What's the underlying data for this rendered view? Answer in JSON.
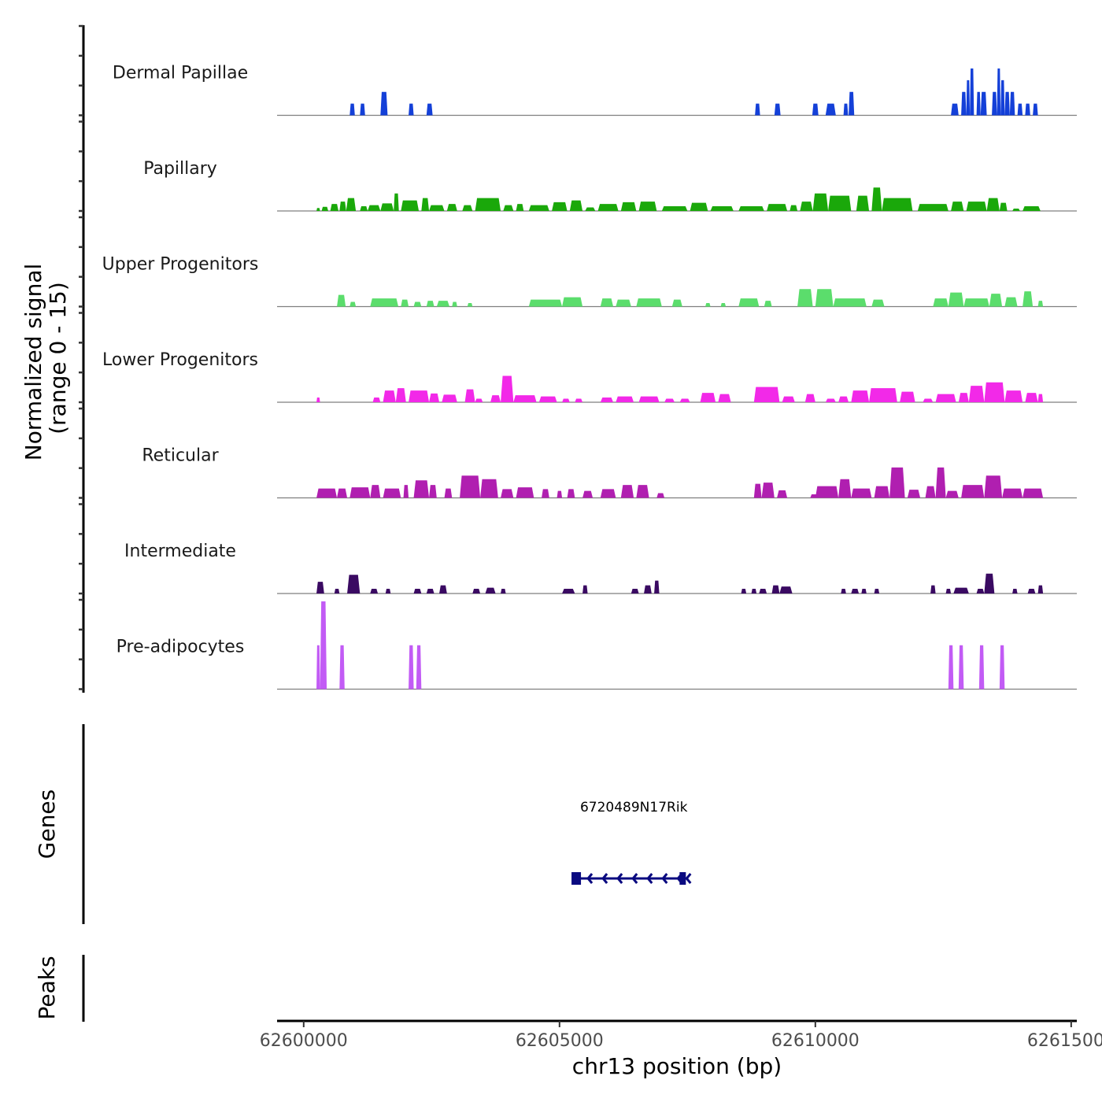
{
  "chart_data": {
    "type": "area",
    "title": "",
    "ylabel": "Normalized signal\n(range 0 - 15)",
    "ylabel_lines": [
      "Normalized signal",
      "(range 0 - 15)"
    ],
    "xlabel": "chr13 position (bp)",
    "chromosome": "chr13",
    "xlim": [
      62599480,
      62615110
    ],
    "ylim": [
      0,
      15
    ],
    "x_ticks": [
      62600000,
      62605000,
      62610000,
      62615000
    ],
    "x_tick_labels": [
      "62600000",
      "62605000",
      "62610000",
      "62615000"
    ],
    "grid": false,
    "legend": "none",
    "series": [
      {
        "name": "Dermal Papillae",
        "color": "#1440d8",
        "segments": [
          [
            62600900,
            62601000,
            2
          ],
          [
            62601100,
            62601200,
            2
          ],
          [
            62601500,
            62601640,
            4
          ],
          [
            62602050,
            62602150,
            2
          ],
          [
            62602400,
            62602520,
            2
          ],
          [
            62608820,
            62608920,
            2
          ],
          [
            62609200,
            62609320,
            2
          ],
          [
            62609940,
            62610060,
            2
          ],
          [
            62610200,
            62610400,
            2
          ],
          [
            62610550,
            62610640,
            2
          ],
          [
            62610650,
            62610760,
            4
          ],
          [
            62612650,
            62612800,
            2
          ],
          [
            62612850,
            62612950,
            4
          ],
          [
            62612950,
            62613020,
            6
          ],
          [
            62613020,
            62613100,
            8
          ],
          [
            62613150,
            62613230,
            4
          ],
          [
            62613230,
            62613350,
            4
          ],
          [
            62613450,
            62613550,
            4
          ],
          [
            62613550,
            62613620,
            8
          ],
          [
            62613620,
            62613700,
            6
          ],
          [
            62613700,
            62613800,
            4
          ],
          [
            62613800,
            62613900,
            4
          ],
          [
            62613950,
            62614050,
            2
          ],
          [
            62614100,
            62614200,
            2
          ],
          [
            62614250,
            62614350,
            2
          ]
        ]
      },
      {
        "name": "Papillary",
        "color": "#1aa80a",
        "segments": [
          [
            62600250,
            62600320,
            0.5
          ],
          [
            62600350,
            62600480,
            0.7
          ],
          [
            62600520,
            62600680,
            1.2
          ],
          [
            62600700,
            62600830,
            1.6
          ],
          [
            62600830,
            62601020,
            2.2
          ],
          [
            62601100,
            62601250,
            0.8
          ],
          [
            62601250,
            62601500,
            1
          ],
          [
            62601500,
            62601760,
            1.3
          ],
          [
            62601760,
            62601860,
            3.0
          ],
          [
            62601900,
            62602250,
            1.8
          ],
          [
            62602300,
            62602450,
            2.2
          ],
          [
            62602450,
            62602750,
            1
          ],
          [
            62602800,
            62603000,
            1.2
          ],
          [
            62603100,
            62603300,
            1
          ],
          [
            62603350,
            62603850,
            2.2
          ],
          [
            62603900,
            62604100,
            1
          ],
          [
            62604150,
            62604300,
            1.2
          ],
          [
            62604400,
            62604800,
            1
          ],
          [
            62604850,
            62605150,
            1.5
          ],
          [
            62605200,
            62605450,
            1.8
          ],
          [
            62605500,
            62605700,
            0.6
          ],
          [
            62605750,
            62606150,
            1.2
          ],
          [
            62606200,
            62606500,
            1.5
          ],
          [
            62606550,
            62606900,
            1.6
          ],
          [
            62607000,
            62607500,
            0.8
          ],
          [
            62607550,
            62607900,
            1.4
          ],
          [
            62607950,
            62608400,
            0.8
          ],
          [
            62608500,
            62609000,
            0.8
          ],
          [
            62609050,
            62609450,
            1.2
          ],
          [
            62609500,
            62609650,
            1
          ],
          [
            62609700,
            62609950,
            1.6
          ],
          [
            62609950,
            62610250,
            3.0
          ],
          [
            62610250,
            62610700,
            2.6
          ],
          [
            62610800,
            62611050,
            2.6
          ],
          [
            62611100,
            62611300,
            4.0
          ],
          [
            62611300,
            62611900,
            2.2
          ],
          [
            62612000,
            62612600,
            1.2
          ],
          [
            62612650,
            62612900,
            1.6
          ],
          [
            62612950,
            62613350,
            1.6
          ],
          [
            62613350,
            62613600,
            2.2
          ],
          [
            62613600,
            62613750,
            1.4
          ],
          [
            62613850,
            62614000,
            0.4
          ],
          [
            62614050,
            62614400,
            0.8
          ]
        ]
      },
      {
        "name": "Upper Progenitors",
        "color": "#5bdd6c",
        "segments": [
          [
            62600650,
            62600820,
            2.0
          ],
          [
            62600900,
            62601020,
            0.8
          ],
          [
            62601300,
            62601850,
            1.4
          ],
          [
            62601900,
            62602050,
            1.2
          ],
          [
            62602150,
            62602300,
            0.8
          ],
          [
            62602400,
            62602550,
            1
          ],
          [
            62602600,
            62602850,
            1
          ],
          [
            62602900,
            62603000,
            0.8
          ],
          [
            62603200,
            62603300,
            0.6
          ],
          [
            62604400,
            62605050,
            1.2
          ],
          [
            62605050,
            62605450,
            1.6
          ],
          [
            62605800,
            62606050,
            1.4
          ],
          [
            62606100,
            62606400,
            1.2
          ],
          [
            62606500,
            62607000,
            1.4
          ],
          [
            62607200,
            62607400,
            1.2
          ],
          [
            62607850,
            62607950,
            0.6
          ],
          [
            62608150,
            62608250,
            0.6
          ],
          [
            62608500,
            62608900,
            1.4
          ],
          [
            62609000,
            62609150,
            1
          ],
          [
            62609650,
            62609950,
            3.0
          ],
          [
            62610000,
            62610350,
            3.0
          ],
          [
            62610350,
            62611000,
            1.4
          ],
          [
            62611100,
            62611350,
            1.2
          ],
          [
            62612300,
            62612600,
            1.4
          ],
          [
            62612600,
            62612900,
            2.4
          ],
          [
            62612900,
            62613400,
            1.4
          ],
          [
            62613400,
            62613650,
            2.2
          ],
          [
            62613700,
            62613950,
            1.6
          ],
          [
            62614050,
            62614250,
            2.6
          ],
          [
            62614350,
            62614450,
            1
          ]
        ]
      },
      {
        "name": "Lower Progenitors",
        "color": "#f229e8",
        "segments": [
          [
            62600250,
            62600320,
            0.8
          ],
          [
            62601350,
            62601500,
            0.8
          ],
          [
            62601550,
            62601800,
            2.0
          ],
          [
            62601800,
            62602000,
            2.4
          ],
          [
            62602050,
            62602450,
            2.0
          ],
          [
            62602450,
            62602650,
            1.5
          ],
          [
            62602700,
            62603000,
            1.3
          ],
          [
            62603150,
            62603350,
            2.2
          ],
          [
            62603350,
            62603500,
            0.6
          ],
          [
            62603650,
            62603850,
            1.2
          ],
          [
            62603850,
            62604100,
            4.5
          ],
          [
            62604100,
            62604550,
            1.2
          ],
          [
            62604600,
            62604950,
            1.0
          ],
          [
            62605050,
            62605200,
            0.6
          ],
          [
            62605300,
            62605450,
            0.6
          ],
          [
            62605800,
            62606050,
            0.8
          ],
          [
            62606100,
            62606450,
            1.0
          ],
          [
            62606550,
            62606950,
            1.0
          ],
          [
            62607050,
            62607250,
            0.6
          ],
          [
            62607350,
            62607550,
            0.6
          ],
          [
            62607750,
            62608050,
            1.6
          ],
          [
            62608100,
            62608350,
            1.4
          ],
          [
            62608800,
            62609300,
            2.6
          ],
          [
            62609350,
            62609600,
            1.0
          ],
          [
            62609800,
            62610000,
            1.4
          ],
          [
            62610200,
            62610400,
            0.6
          ],
          [
            62610450,
            62610650,
            1.0
          ],
          [
            62610700,
            62611050,
            2.0
          ],
          [
            62611050,
            62611600,
            2.4
          ],
          [
            62611650,
            62611950,
            1.8
          ],
          [
            62612100,
            62612300,
            0.6
          ],
          [
            62612350,
            62612750,
            1.4
          ],
          [
            62612800,
            62613000,
            1.6
          ],
          [
            62613000,
            62613300,
            2.8
          ],
          [
            62613300,
            62613700,
            3.4
          ],
          [
            62613700,
            62614050,
            2.0
          ],
          [
            62614100,
            62614350,
            1.6
          ],
          [
            62614350,
            62614450,
            1.4
          ]
        ]
      },
      {
        "name": "Reticular",
        "color": "#b01fb0",
        "segments": [
          [
            62600250,
            62600650,
            1.6
          ],
          [
            62600650,
            62600850,
            1.6
          ],
          [
            62600900,
            62601300,
            1.8
          ],
          [
            62601300,
            62601500,
            2.2
          ],
          [
            62601550,
            62601900,
            1.6
          ],
          [
            62601950,
            62602050,
            2.2
          ],
          [
            62602150,
            62602450,
            3.0
          ],
          [
            62602450,
            62602600,
            2.2
          ],
          [
            62602750,
            62602900,
            1.6
          ],
          [
            62603050,
            62603450,
            3.8
          ],
          [
            62603450,
            62603800,
            3.2
          ],
          [
            62603850,
            62604100,
            1.5
          ],
          [
            62604150,
            62604500,
            1.8
          ],
          [
            62604650,
            62604800,
            1.5
          ],
          [
            62604950,
            62605050,
            1.2
          ],
          [
            62605150,
            62605300,
            1.5
          ],
          [
            62605450,
            62605650,
            1.2
          ],
          [
            62605800,
            62606100,
            1.5
          ],
          [
            62606200,
            62606450,
            2.2
          ],
          [
            62606500,
            62606750,
            2.2
          ],
          [
            62606900,
            62607050,
            0.8
          ],
          [
            62608800,
            62608950,
            2.4
          ],
          [
            62608950,
            62609200,
            2.6
          ],
          [
            62609250,
            62609450,
            1.3
          ],
          [
            62609900,
            62610050,
            0.6
          ],
          [
            62610000,
            62610450,
            2.0
          ],
          [
            62610450,
            62610700,
            3.2
          ],
          [
            62610700,
            62611100,
            1.6
          ],
          [
            62611150,
            62611450,
            2.0
          ],
          [
            62611450,
            62611750,
            5.2
          ],
          [
            62611800,
            62612050,
            1.4
          ],
          [
            62612150,
            62612350,
            2.0
          ],
          [
            62612350,
            62612550,
            5.2
          ],
          [
            62612550,
            62612800,
            1.2
          ],
          [
            62612850,
            62613300,
            2.2
          ],
          [
            62613300,
            62613650,
            3.8
          ],
          [
            62613650,
            62614050,
            1.6
          ],
          [
            62614050,
            62614450,
            1.6
          ]
        ]
      },
      {
        "name": "Intermediate",
        "color": "#3a0a62",
        "segments": [
          [
            62600250,
            62600400,
            2.0
          ],
          [
            62600600,
            62600700,
            0.8
          ],
          [
            62600850,
            62601100,
            3.2
          ],
          [
            62601300,
            62601450,
            0.8
          ],
          [
            62601600,
            62601700,
            0.8
          ],
          [
            62602150,
            62602300,
            0.8
          ],
          [
            62602400,
            62602550,
            0.8
          ],
          [
            62602650,
            62602800,
            1.4
          ],
          [
            62603300,
            62603450,
            0.8
          ],
          [
            62603550,
            62603750,
            1.0
          ],
          [
            62603850,
            62603950,
            0.8
          ],
          [
            62605050,
            62605300,
            0.8
          ],
          [
            62605450,
            62605550,
            1.4
          ],
          [
            62606400,
            62606550,
            0.8
          ],
          [
            62606650,
            62606800,
            1.4
          ],
          [
            62606850,
            62606950,
            2.2
          ],
          [
            62608550,
            62608650,
            0.8
          ],
          [
            62608750,
            62608850,
            0.8
          ],
          [
            62608900,
            62609050,
            0.8
          ],
          [
            62609150,
            62609300,
            1.4
          ],
          [
            62609300,
            62609550,
            1.2
          ],
          [
            62610500,
            62610600,
            0.8
          ],
          [
            62610700,
            62610850,
            0.8
          ],
          [
            62610900,
            62611000,
            0.8
          ],
          [
            62611150,
            62611250,
            0.8
          ],
          [
            62612250,
            62612350,
            1.4
          ],
          [
            62612550,
            62612650,
            0.8
          ],
          [
            62612700,
            62613000,
            1.0
          ],
          [
            62613150,
            62613300,
            0.8
          ],
          [
            62613300,
            62613500,
            3.4
          ],
          [
            62613850,
            62613950,
            0.8
          ],
          [
            62614150,
            62614300,
            0.8
          ],
          [
            62614350,
            62614450,
            1.4
          ]
        ]
      },
      {
        "name": "Pre-adipocytes",
        "color": "#c25bf5",
        "segments": [
          [
            62600250,
            62600320,
            7.5
          ],
          [
            62600320,
            62600450,
            15
          ],
          [
            62600700,
            62600800,
            7.5
          ],
          [
            62602050,
            62602150,
            7.5
          ],
          [
            62602200,
            62602300,
            7.5
          ],
          [
            62612600,
            62612700,
            7.5
          ],
          [
            62612800,
            62612900,
            7.5
          ],
          [
            62613200,
            62613300,
            7.5
          ],
          [
            62613600,
            62613700,
            7.5
          ]
        ]
      }
    ],
    "genes": {
      "track_label": "Genes",
      "items": [
        {
          "name": "6720489N17Rik",
          "start": 62605250,
          "end": 62607500,
          "strand": "-",
          "color": "#0a0a80"
        }
      ]
    },
    "peaks": {
      "track_label": "Peaks",
      "items": []
    }
  }
}
